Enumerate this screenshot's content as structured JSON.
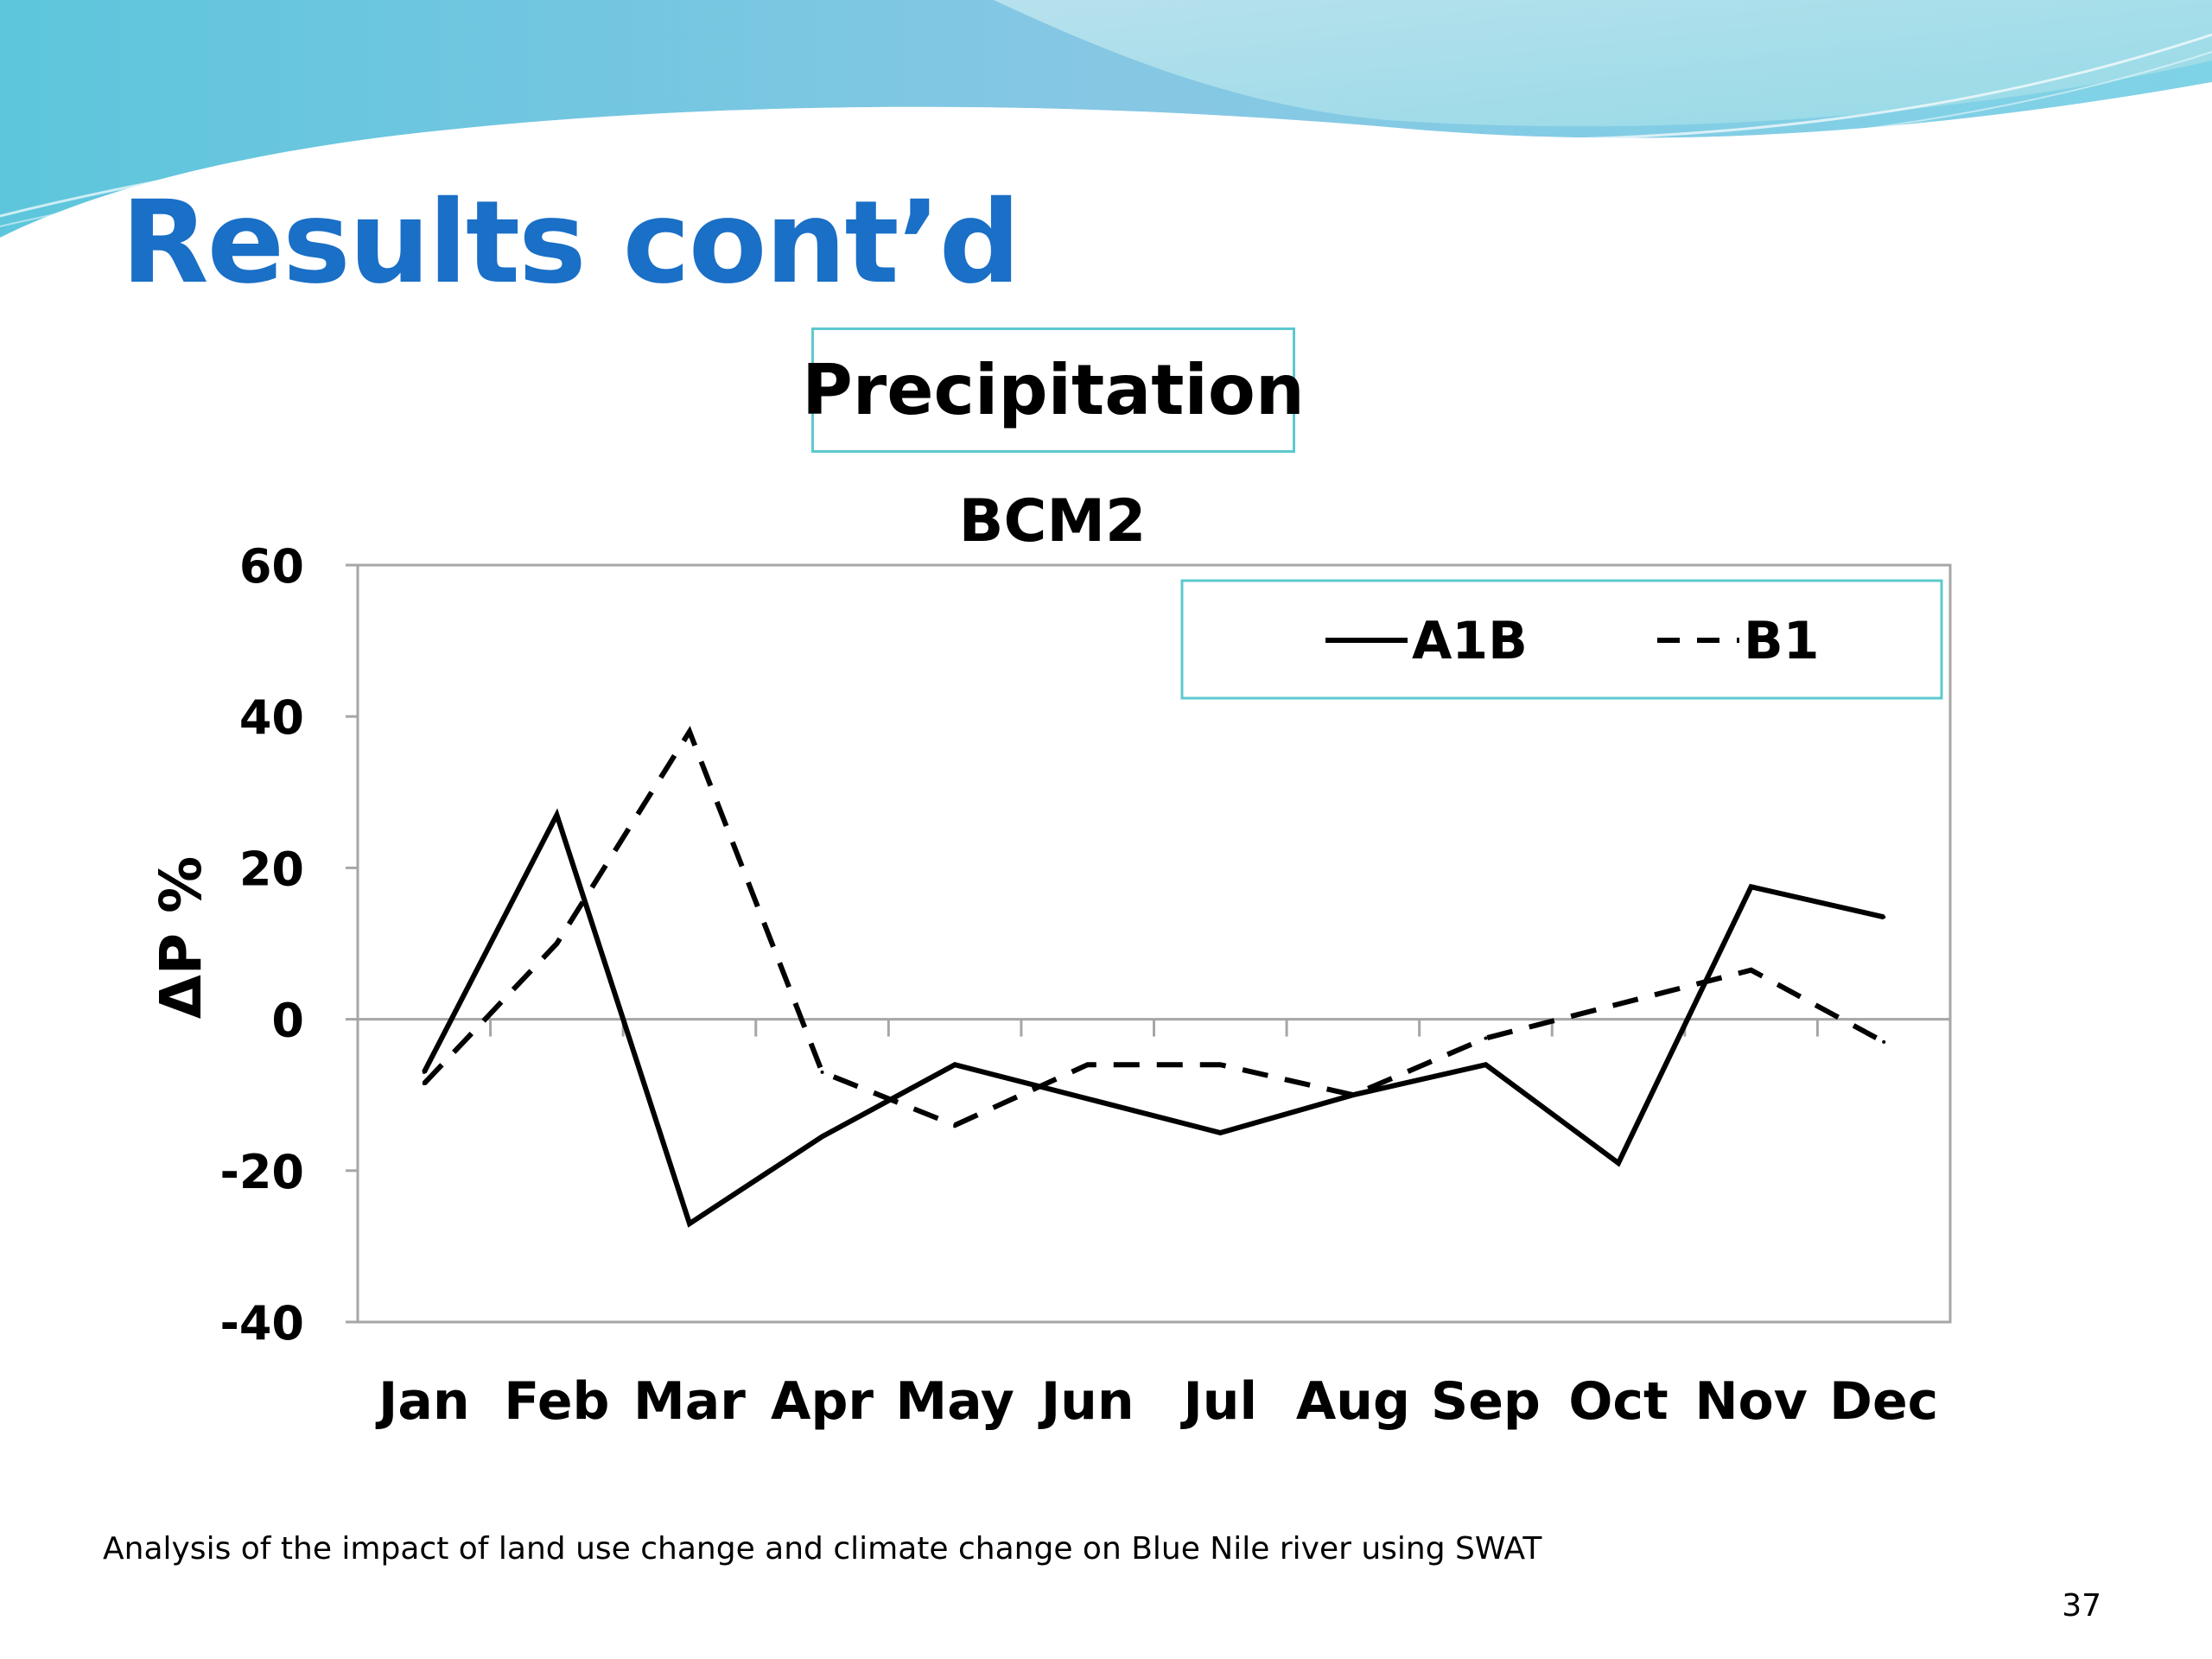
{
  "slide": {
    "title": "Results cont’d",
    "title_color": "#1a6fc6",
    "section_label": "Precipitation",
    "caption": "Analysis of the impact of land use change and climate change on Blue Nile river using SWAT",
    "page_number": "37"
  },
  "chart_data": {
    "type": "line",
    "title": "BCM2",
    "xlabel": "",
    "ylabel": "ΔP %",
    "ylim": [
      -40,
      60
    ],
    "yticks": [
      "60",
      "40",
      "20",
      "0",
      "-20",
      "-40"
    ],
    "categories": [
      "Jan",
      "Feb",
      "Mar",
      "Apr",
      "May",
      "Jun",
      "Jul",
      "Aug",
      "Sep",
      "Oct",
      "Nov",
      "Dec"
    ],
    "series": [
      {
        "name": "A1B",
        "style": "solid",
        "values": [
          -7,
          27,
          -27,
          -15.5,
          -6,
          -10.5,
          -15,
          -10,
          -6,
          -19,
          17.5,
          13.5
        ]
      },
      {
        "name": "B1",
        "style": "dashed",
        "values": [
          -8.5,
          10,
          38,
          -7,
          -14,
          -6,
          -6,
          -10,
          -2.5,
          2,
          6.5,
          -3
        ]
      }
    ],
    "legend_position": "top-right",
    "grid": false,
    "line_color": "#000000",
    "frame_color": "#a6a6a6",
    "legend_border_color": "#5cc9cf"
  }
}
